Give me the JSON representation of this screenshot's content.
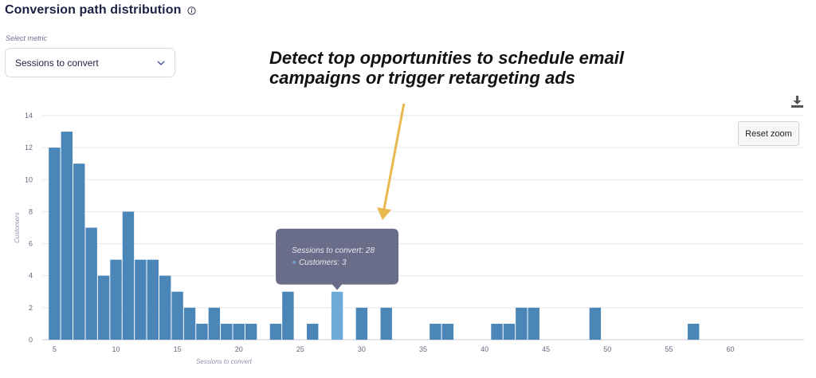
{
  "header": {
    "title": "Conversion path distribution"
  },
  "metric_select": {
    "label": "Select metric",
    "value": "Sessions to convert"
  },
  "callout": {
    "line1": "Detect top opportunities to schedule email",
    "line2": "campaigns or trigger retargeting ads"
  },
  "controls": {
    "reset_zoom": "Reset zoom"
  },
  "tooltip": {
    "line1": "Sessions to convert: 28",
    "line2": "Customers: 3"
  },
  "colors": {
    "bar": "#4a86b8",
    "bar_highlight": "#6fa9d6",
    "tooltip_bg": "#6a6d89",
    "arrow": "#e8b94f"
  },
  "chart_data": {
    "type": "bar",
    "xlabel": "Sessions to convert",
    "ylabel": "Customers",
    "xlim": [
      4,
      66
    ],
    "ylim": [
      0,
      14
    ],
    "x_ticks": [
      5,
      10,
      15,
      20,
      25,
      30,
      35,
      40,
      45,
      50,
      55,
      60
    ],
    "y_ticks": [
      0,
      2,
      4,
      6,
      8,
      10,
      12,
      14
    ],
    "highlight_x": 28,
    "x": [
      5,
      6,
      7,
      8,
      9,
      10,
      11,
      12,
      13,
      14,
      15,
      16,
      17,
      18,
      19,
      20,
      21,
      23,
      24,
      26,
      28,
      30,
      32,
      36,
      37,
      41,
      42,
      43,
      44,
      49,
      57
    ],
    "values": [
      12,
      13,
      11,
      7,
      4,
      5,
      8,
      5,
      5,
      4,
      3,
      2,
      1,
      2,
      1,
      1,
      1,
      1,
      3,
      1,
      3,
      2,
      2,
      1,
      1,
      1,
      1,
      2,
      2,
      2,
      1
    ],
    "grid": true,
    "legend": "none"
  }
}
